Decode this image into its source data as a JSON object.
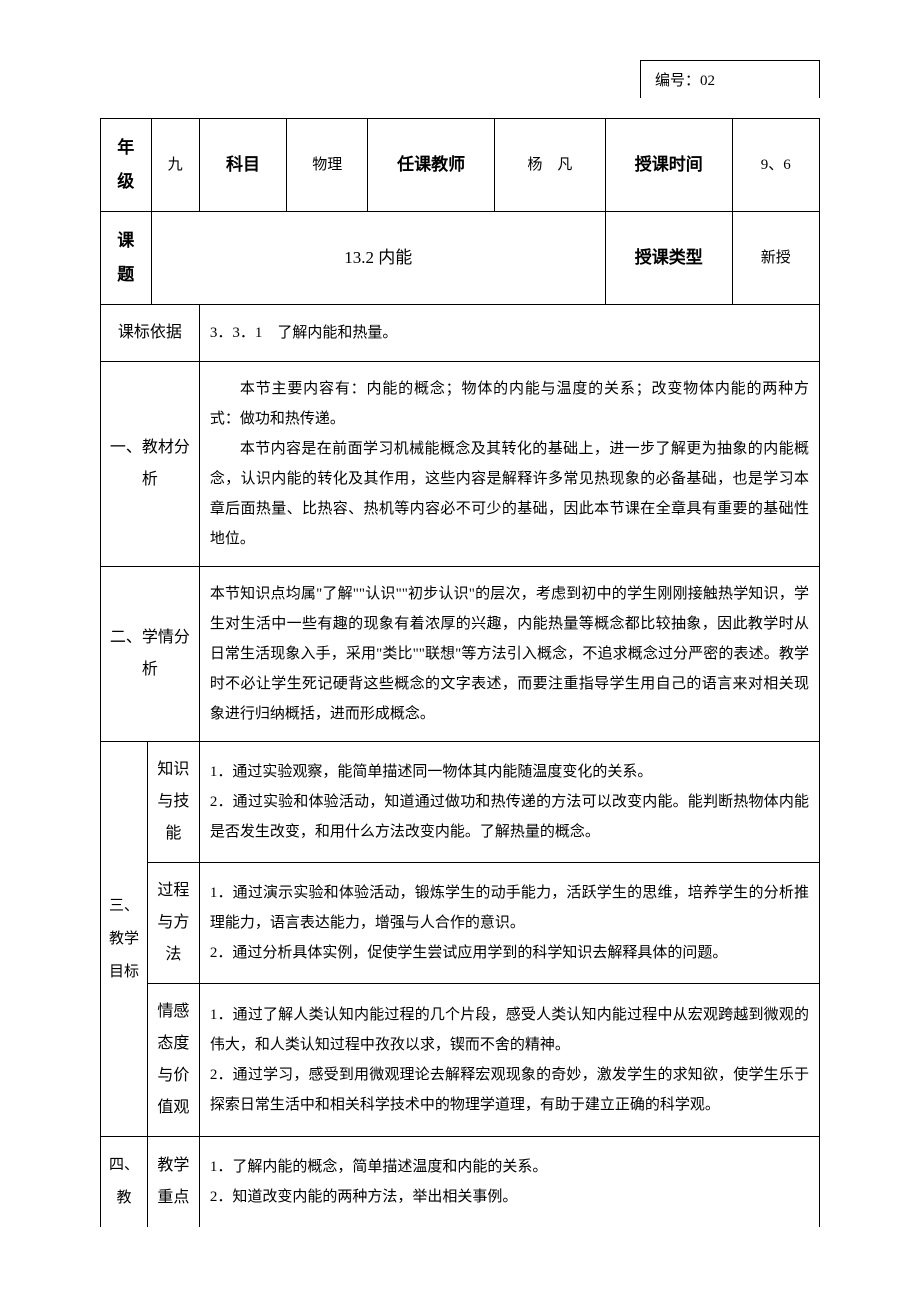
{
  "doc_number_label": "编号：02",
  "header": {
    "grade_label": "年级",
    "grade_value": "九",
    "subject_label": "科目",
    "subject_value": "物理",
    "teacher_label": "任课教师",
    "teacher_value": "杨　凡",
    "time_label": "授课时间",
    "time_value": "9、6",
    "topic_label": "课题",
    "topic_value": "13.2 内能",
    "type_label": "授课类型",
    "type_value": "新授"
  },
  "standard": {
    "label": "课标依据",
    "content": "3．3．1　了解内能和热量。"
  },
  "material": {
    "label": "一、教材分析",
    "p1": "本节主要内容有：内能的概念；物体的内能与温度的关系；改变物体内能的两种方式：做功和热传递。",
    "p2": "本节内容是在前面学习机械能概念及其转化的基础上，进一步了解更为抽象的内能概念，认识内能的转化及其作用，这些内容是解释许多常见热现象的必备基础，也是学习本章后面热量、比热容、热机等内容必不可少的基础，因此本节课在全章具有重要的基础性地位。"
  },
  "learner": {
    "label": "二、学情分析",
    "content": "本节知识点均属\"了解\"\"认识\"\"初步认识\"的层次，考虑到初中的学生刚刚接触热学知识，学生对生活中一些有趣的现象有着浓厚的兴趣，内能热量等概念都比较抽象，因此教学时从日常生活现象入手，采用\"类比\"\"联想\"等方法引入概念，不追求概念过分严密的表述。教学时不必让学生死记硬背这些概念的文字表述，而要注重指导学生用自己的语言来对相关现象进行归纳概括，进而形成概念。"
  },
  "objectives": {
    "main_label": "三、教学目标",
    "knowledge_label": "知识与技能",
    "knowledge_content": "1．通过实验观察，能简单描述同一物体其内能随温度变化的关系。\n2．通过实验和体验活动，知道通过做功和热传递的方法可以改变内能。能判断热物体内能是否发生改变，和用什么方法改变内能。了解热量的概念。",
    "process_label": "过程与方法",
    "process_content": "1．通过演示实验和体验活动，锻炼学生的动手能力，活跃学生的思维，培养学生的分析推理能力，语言表达能力，增强与人合作的意识。\n2．通过分析具体实例，促使学生尝试应用学到的科学知识去解释具体的问题。",
    "attitude_label": "情感态度与价值观",
    "attitude_content": "1．通过了解人类认知内能过程的几个片段，感受人类认知内能过程中从宏观跨越到微观的伟大，和人类认知过程中孜孜以求，锲而不舍的精神。\n2．通过学习，感受到用微观理论去解释宏观现象的奇妙，激发学生的求知欲，使学生乐于探索日常生活中和相关科学技术中的物理学道理，有助于建立正确的科学观。"
  },
  "keypoints": {
    "main_label": "四、教",
    "focus_label": "教学重点",
    "focus_content": "1．了解内能的概念，简单描述温度和内能的关系。\n2．知道改变内能的两种方法，举出相关事例。"
  }
}
